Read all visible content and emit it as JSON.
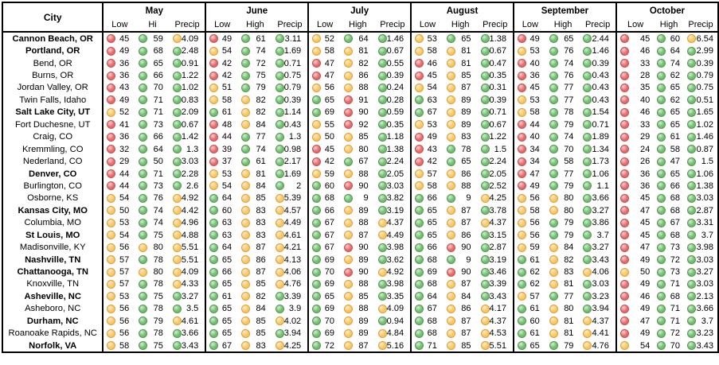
{
  "table": {
    "city_header": "City",
    "dot_colors": {
      "red": "#e8696b",
      "yellow": "#fbc75d",
      "green": "#6fbf6f"
    },
    "months": [
      {
        "name": "May",
        "cols": [
          "Low",
          "Hi",
          "Precip"
        ]
      },
      {
        "name": "June",
        "cols": [
          "Low",
          "High",
          "Precip"
        ]
      },
      {
        "name": "July",
        "cols": [
          "Low",
          "High",
          "Precip"
        ]
      },
      {
        "name": "August",
        "cols": [
          "Low",
          "High",
          "Precip"
        ]
      },
      {
        "name": "September",
        "cols": [
          "Low",
          "High",
          "Precip"
        ]
      },
      {
        "name": "October",
        "cols": [
          "Low",
          "High",
          "Precip"
        ]
      }
    ],
    "rows": [
      {
        "city": "Cannon Beach, OR",
        "bold": true,
        "v": [
          "45",
          "59",
          "4.09",
          "49",
          "61",
          "3.11",
          "52",
          "64",
          "1.46",
          "53",
          "65",
          "1.38",
          "49",
          "65",
          "2.44",
          "45",
          "60",
          "6.54"
        ],
        "d": [
          "r",
          "g",
          "y",
          "r",
          "g",
          "g",
          "y",
          "g",
          "g",
          "y",
          "g",
          "g",
          "r",
          "g",
          "g",
          "r",
          "g",
          "y"
        ]
      },
      {
        "city": "Portland, OR",
        "bold": true,
        "v": [
          "49",
          "68",
          "2.48",
          "54",
          "74",
          "1.69",
          "58",
          "81",
          "0.67",
          "58",
          "81",
          "0.67",
          "53",
          "76",
          "1.46",
          "46",
          "64",
          "2.99"
        ],
        "d": [
          "r",
          "g",
          "g",
          "y",
          "g",
          "g",
          "y",
          "y",
          "g",
          "y",
          "y",
          "g",
          "y",
          "g",
          "g",
          "r",
          "g",
          "g"
        ]
      },
      {
        "city": "Bend, OR",
        "bold": false,
        "v": [
          "36",
          "65",
          "0.91",
          "42",
          "72",
          "0.71",
          "47",
          "82",
          "0.55",
          "46",
          "81",
          "0.47",
          "40",
          "74",
          "0.39",
          "33",
          "74",
          "0.39"
        ],
        "d": [
          "r",
          "g",
          "g",
          "r",
          "g",
          "g",
          "r",
          "y",
          "g",
          "r",
          "y",
          "g",
          "r",
          "g",
          "g",
          "r",
          "g",
          "g"
        ]
      },
      {
        "city": "Burns, OR",
        "bold": false,
        "v": [
          "36",
          "66",
          "1.22",
          "42",
          "75",
          "0.75",
          "47",
          "86",
          "0.39",
          "45",
          "85",
          "0.35",
          "36",
          "76",
          "0.43",
          "28",
          "62",
          "0.79"
        ],
        "d": [
          "r",
          "g",
          "g",
          "r",
          "g",
          "g",
          "r",
          "y",
          "g",
          "r",
          "y",
          "g",
          "r",
          "g",
          "g",
          "r",
          "g",
          "g"
        ]
      },
      {
        "city": "Jordan Valley, OR",
        "bold": false,
        "v": [
          "43",
          "70",
          "1.02",
          "51",
          "79",
          "0.79",
          "56",
          "88",
          "0.24",
          "54",
          "87",
          "0.31",
          "45",
          "77",
          "0.43",
          "35",
          "65",
          "0.75"
        ],
        "d": [
          "r",
          "g",
          "g",
          "y",
          "g",
          "g",
          "y",
          "y",
          "g",
          "y",
          "y",
          "g",
          "r",
          "g",
          "g",
          "r",
          "g",
          "g"
        ]
      },
      {
        "city": "Twin Falls, Idaho",
        "bold": false,
        "v": [
          "49",
          "71",
          "0.83",
          "58",
          "82",
          "0.39",
          "65",
          "91",
          "0.28",
          "63",
          "89",
          "0.39",
          "53",
          "77",
          "0.43",
          "40",
          "62",
          "0.51"
        ],
        "d": [
          "r",
          "g",
          "g",
          "y",
          "y",
          "g",
          "g",
          "r",
          "g",
          "g",
          "y",
          "g",
          "y",
          "g",
          "g",
          "r",
          "g",
          "g"
        ]
      },
      {
        "city": "Salt Lake City, UT",
        "bold": true,
        "v": [
          "52",
          "71",
          "2.09",
          "61",
          "82",
          "1.14",
          "69",
          "90",
          "0.59",
          "67",
          "89",
          "0.71",
          "58",
          "78",
          "1.54",
          "46",
          "65",
          "1.65"
        ],
        "d": [
          "y",
          "g",
          "g",
          "g",
          "y",
          "g",
          "g",
          "r",
          "g",
          "g",
          "y",
          "g",
          "y",
          "g",
          "g",
          "r",
          "g",
          "g"
        ]
      },
      {
        "city": "Fort Duchesne, UT",
        "bold": false,
        "v": [
          "41",
          "73",
          "0.67",
          "48",
          "84",
          "0.43",
          "55",
          "92",
          "0.35",
          "53",
          "89",
          "0.67",
          "44",
          "79",
          "0.71",
          "33",
          "65",
          "1.02"
        ],
        "d": [
          "r",
          "g",
          "g",
          "r",
          "y",
          "g",
          "y",
          "r",
          "g",
          "y",
          "y",
          "g",
          "r",
          "g",
          "g",
          "r",
          "g",
          "g"
        ]
      },
      {
        "city": "Craig, CO",
        "bold": false,
        "v": [
          "36",
          "66",
          "1.42",
          "44",
          "77",
          "1.3",
          "50",
          "85",
          "1.18",
          "49",
          "83",
          "1.22",
          "40",
          "74",
          "1.89",
          "29",
          "61",
          "1.46"
        ],
        "d": [
          "r",
          "g",
          "g",
          "r",
          "g",
          "g",
          "y",
          "y",
          "g",
          "r",
          "y",
          "g",
          "r",
          "g",
          "g",
          "r",
          "g",
          "g"
        ]
      },
      {
        "city": "Kremmling, CO",
        "bold": false,
        "v": [
          "32",
          "64",
          "1.3",
          "39",
          "74",
          "0.98",
          "45",
          "80",
          "1.38",
          "43",
          "78",
          "1.5",
          "34",
          "70",
          "1.34",
          "24",
          "58",
          "0.87"
        ],
        "d": [
          "r",
          "g",
          "g",
          "r",
          "g",
          "g",
          "r",
          "y",
          "g",
          "r",
          "g",
          "g",
          "r",
          "g",
          "g",
          "r",
          "g",
          "g"
        ]
      },
      {
        "city": "Nederland, CO",
        "bold": false,
        "v": [
          "29",
          "50",
          "3.03",
          "37",
          "61",
          "2.17",
          "42",
          "67",
          "2.24",
          "42",
          "65",
          "2.24",
          "34",
          "58",
          "1.73",
          "26",
          "47",
          "1.5"
        ],
        "d": [
          "r",
          "g",
          "g",
          "r",
          "g",
          "g",
          "r",
          "g",
          "g",
          "r",
          "g",
          "g",
          "r",
          "g",
          "g",
          "r",
          "g",
          "g"
        ]
      },
      {
        "city": "Denver, CO",
        "bold": true,
        "v": [
          "44",
          "71",
          "2.28",
          "53",
          "81",
          "1.69",
          "59",
          "88",
          "2.05",
          "57",
          "86",
          "2.05",
          "47",
          "77",
          "1.06",
          "36",
          "65",
          "1.06"
        ],
        "d": [
          "r",
          "g",
          "g",
          "y",
          "y",
          "g",
          "y",
          "y",
          "g",
          "y",
          "y",
          "g",
          "r",
          "g",
          "g",
          "r",
          "g",
          "g"
        ]
      },
      {
        "city": "Burlington, CO",
        "bold": false,
        "v": [
          "44",
          "73",
          "2.6",
          "54",
          "84",
          "2",
          "60",
          "90",
          "3.03",
          "58",
          "88",
          "2.52",
          "49",
          "79",
          "1.1",
          "36",
          "66",
          "1.38"
        ],
        "d": [
          "r",
          "g",
          "g",
          "y",
          "y",
          "g",
          "g",
          "r",
          "g",
          "y",
          "y",
          "g",
          "r",
          "g",
          "g",
          "r",
          "g",
          "g"
        ]
      },
      {
        "city": "Osborne, KS",
        "bold": false,
        "v": [
          "54",
          "76",
          "4.92",
          "64",
          "85",
          "5.39",
          "68",
          "9",
          "3.82",
          "66",
          "9",
          "4.25",
          "56",
          "80",
          "3.66",
          "45",
          "68",
          "3.03"
        ],
        "d": [
          "y",
          "g",
          "y",
          "g",
          "y",
          "y",
          "g",
          "g",
          "g",
          "g",
          "g",
          "y",
          "y",
          "y",
          "g",
          "r",
          "g",
          "g"
        ]
      },
      {
        "city": "Kansas City, MO",
        "bold": true,
        "v": [
          "50",
          "74",
          "4.42",
          "60",
          "83",
          "4.57",
          "66",
          "89",
          "3.19",
          "65",
          "87",
          "3.78",
          "58",
          "80",
          "3.27",
          "47",
          "68",
          "2.87"
        ],
        "d": [
          "y",
          "g",
          "y",
          "g",
          "y",
          "y",
          "g",
          "y",
          "g",
          "g",
          "y",
          "g",
          "y",
          "y",
          "g",
          "r",
          "g",
          "g"
        ]
      },
      {
        "city": "Columbia, MO",
        "bold": false,
        "v": [
          "53",
          "74",
          "4.96",
          "63",
          "83",
          "4.49",
          "67",
          "88",
          "4.37",
          "65",
          "87",
          "4.37",
          "56",
          "79",
          "3.86",
          "45",
          "67",
          "3.31"
        ],
        "d": [
          "y",
          "g",
          "y",
          "g",
          "y",
          "y",
          "g",
          "y",
          "y",
          "g",
          "y",
          "y",
          "y",
          "g",
          "g",
          "r",
          "g",
          "g"
        ]
      },
      {
        "city": "St Louis, MO",
        "bold": true,
        "v": [
          "54",
          "75",
          "4.88",
          "63",
          "83",
          "4.61",
          "67",
          "87",
          "4.49",
          "65",
          "86",
          "3.15",
          "56",
          "79",
          "3.7",
          "45",
          "68",
          "3.7"
        ],
        "d": [
          "y",
          "g",
          "y",
          "g",
          "y",
          "y",
          "g",
          "y",
          "y",
          "g",
          "y",
          "g",
          "y",
          "g",
          "g",
          "r",
          "g",
          "g"
        ]
      },
      {
        "city": "Madisonville, KY",
        "bold": false,
        "v": [
          "56",
          "80",
          "5.51",
          "64",
          "87",
          "4.21",
          "67",
          "90",
          "3.98",
          "66",
          "90",
          "2.87",
          "59",
          "84",
          "3.27",
          "47",
          "73",
          "3.98"
        ],
        "d": [
          "y",
          "y",
          "y",
          "g",
          "y",
          "y",
          "g",
          "r",
          "g",
          "g",
          "r",
          "g",
          "y",
          "y",
          "g",
          "r",
          "g",
          "g"
        ]
      },
      {
        "city": "Nashville, TN",
        "bold": true,
        "v": [
          "57",
          "78",
          "5.51",
          "65",
          "86",
          "4.13",
          "69",
          "89",
          "3.62",
          "68",
          "9",
          "3.19",
          "61",
          "82",
          "3.43",
          "49",
          "72",
          "3.03"
        ],
        "d": [
          "y",
          "g",
          "y",
          "g",
          "y",
          "y",
          "g",
          "y",
          "g",
          "g",
          "g",
          "g",
          "g",
          "y",
          "g",
          "r",
          "g",
          "g"
        ]
      },
      {
        "city": "Chattanooga, TN",
        "bold": true,
        "v": [
          "57",
          "80",
          "4.09",
          "66",
          "87",
          "4.06",
          "70",
          "90",
          "4.92",
          "69",
          "90",
          "3.46",
          "62",
          "83",
          "4.06",
          "50",
          "73",
          "3.27"
        ],
        "d": [
          "y",
          "y",
          "y",
          "g",
          "y",
          "y",
          "g",
          "r",
          "y",
          "g",
          "r",
          "g",
          "g",
          "y",
          "y",
          "y",
          "g",
          "g"
        ]
      },
      {
        "city": "Knoxville, TN",
        "bold": false,
        "v": [
          "57",
          "78",
          "4.33",
          "65",
          "85",
          "4.76",
          "69",
          "88",
          "3.98",
          "68",
          "87",
          "3.39",
          "62",
          "81",
          "3.03",
          "49",
          "71",
          "3.03"
        ],
        "d": [
          "y",
          "g",
          "y",
          "g",
          "y",
          "y",
          "g",
          "y",
          "g",
          "g",
          "y",
          "g",
          "g",
          "y",
          "g",
          "r",
          "g",
          "g"
        ]
      },
      {
        "city": "Asheville, NC",
        "bold": true,
        "v": [
          "53",
          "75",
          "3.27",
          "61",
          "82",
          "3.39",
          "65",
          "85",
          "3.35",
          "64",
          "84",
          "3.43",
          "57",
          "77",
          "3.23",
          "46",
          "68",
          "2.13"
        ],
        "d": [
          "y",
          "g",
          "g",
          "g",
          "y",
          "g",
          "g",
          "y",
          "g",
          "g",
          "y",
          "g",
          "y",
          "g",
          "g",
          "r",
          "g",
          "g"
        ]
      },
      {
        "city": "Asheboro, NC",
        "bold": false,
        "v": [
          "56",
          "78",
          "3.5",
          "65",
          "84",
          "3.9",
          "69",
          "88",
          "4.09",
          "67",
          "86",
          "4.17",
          "61",
          "80",
          "3.94",
          "49",
          "71",
          "3.66"
        ],
        "d": [
          "y",
          "g",
          "g",
          "g",
          "y",
          "g",
          "g",
          "y",
          "y",
          "g",
          "y",
          "y",
          "g",
          "y",
          "g",
          "r",
          "g",
          "g"
        ]
      },
      {
        "city": "Durham, NC",
        "bold": true,
        "v": [
          "56",
          "79",
          "4.61",
          "65",
          "85",
          "4.02",
          "70",
          "89",
          "0.94",
          "68",
          "87",
          "4.37",
          "60",
          "81",
          "4.37",
          "47",
          "71",
          "3.7"
        ],
        "d": [
          "y",
          "g",
          "y",
          "g",
          "y",
          "y",
          "g",
          "y",
          "g",
          "g",
          "y",
          "y",
          "g",
          "y",
          "y",
          "r",
          "g",
          "g"
        ]
      },
      {
        "city": "Roanoake Rapids, NC",
        "bold": false,
        "v": [
          "56",
          "78",
          "3.66",
          "65",
          "85",
          "3.94",
          "69",
          "89",
          "4.84",
          "68",
          "87",
          "4.53",
          "61",
          "81",
          "4.41",
          "49",
          "72",
          "3.23"
        ],
        "d": [
          "y",
          "g",
          "g",
          "g",
          "y",
          "g",
          "g",
          "y",
          "y",
          "g",
          "y",
          "y",
          "g",
          "y",
          "y",
          "r",
          "g",
          "g"
        ]
      },
      {
        "city": "Norfolk, VA",
        "bold": true,
        "v": [
          "58",
          "75",
          "3.43",
          "67",
          "83",
          "4.25",
          "72",
          "87",
          "5.16",
          "71",
          "85",
          "5.51",
          "65",
          "79",
          "4.76",
          "54",
          "70",
          "3.43"
        ],
        "d": [
          "y",
          "g",
          "g",
          "g",
          "y",
          "y",
          "g",
          "y",
          "y",
          "g",
          "y",
          "y",
          "g",
          "g",
          "y",
          "y",
          "g",
          "g"
        ]
      }
    ]
  }
}
